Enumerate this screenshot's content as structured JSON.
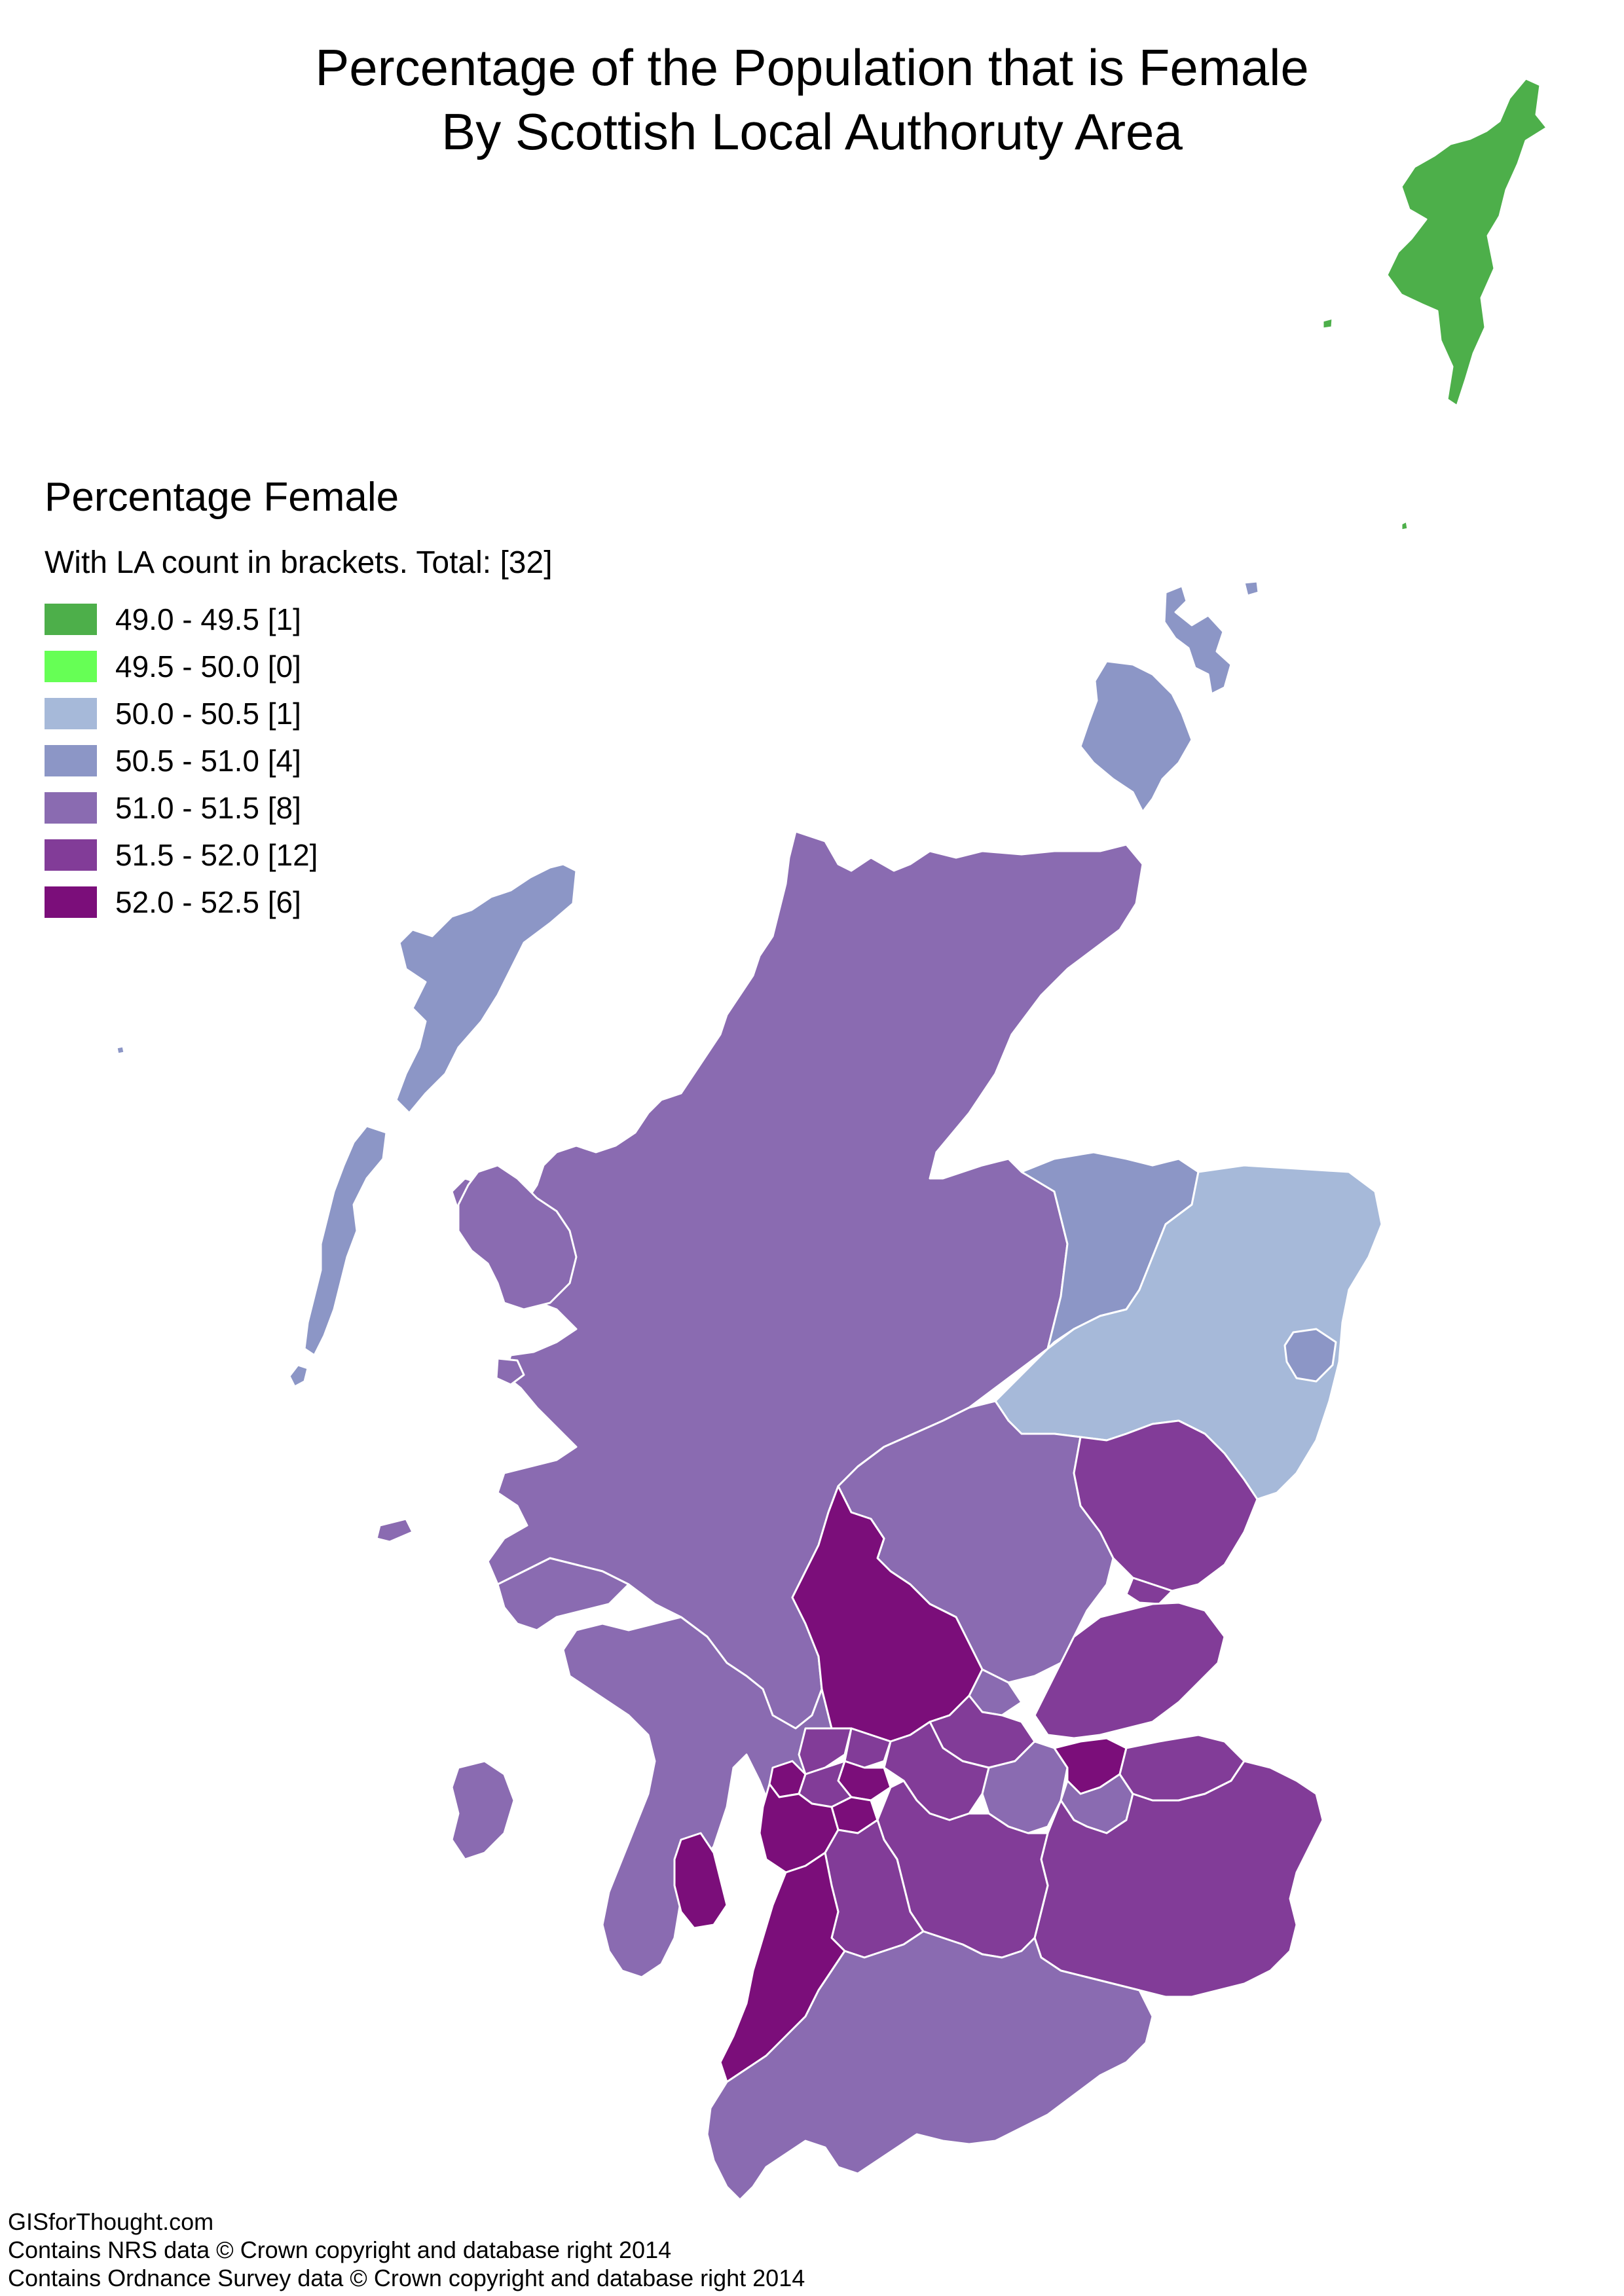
{
  "title": {
    "line1": "Percentage of the Population that is Female",
    "line2": "By Scottish Local Authoruty Area"
  },
  "legend": {
    "title": "Percentage Female",
    "subtitle": "With LA count in brackets. Total: [32]",
    "items": [
      {
        "label": "49.0 - 49.5 [1]",
        "color": "#4daf4a"
      },
      {
        "label": "49.5 - 50.0 [0]",
        "color": "#66ff55"
      },
      {
        "label": "50.0 - 50.5 [1]",
        "color": "#a6b9d9"
      },
      {
        "label": "50.5 - 51.0 [4]",
        "color": "#8c96c6"
      },
      {
        "label": "51.0 - 51.5 [8]",
        "color": "#8a6bb1"
      },
      {
        "label": "51.5 - 52.0 [12]",
        "color": "#823c98"
      },
      {
        "label": "52.0 - 52.5 [6]",
        "color": "#7b0e7a"
      }
    ]
  },
  "credits": {
    "line1": "GISforThought.com",
    "line2": "Contains NRS data © Crown copyright and database right 2014",
    "line3": "Contains Ordnance Survey data © Crown copyright and database right 2014"
  },
  "colors": {
    "background": "#ffffff",
    "border": "#ffffff"
  }
}
